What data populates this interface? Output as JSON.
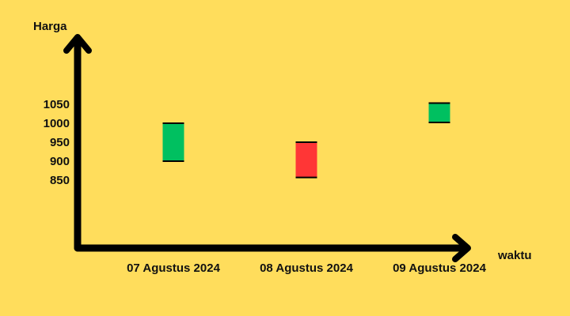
{
  "chart_data": {
    "type": "candlestick",
    "title": "",
    "xlabel": "waktu",
    "ylabel": "Harga",
    "y_ticks": [
      1050,
      1000,
      950,
      900,
      850
    ],
    "categories": [
      "07 Agustus 2024",
      "08 Agustus 2024",
      "09 Agustus 2024"
    ],
    "candles": [
      {
        "date": "07 Agustus 2024",
        "open": 900,
        "close": 1000,
        "direction": "up"
      },
      {
        "date": "08 Agustus 2024",
        "open": 950,
        "close": 857,
        "direction": "down"
      },
      {
        "date": "09 Agustus 2024",
        "open": 1002,
        "close": 1053,
        "direction": "up"
      }
    ],
    "grid": false,
    "legend": "none"
  },
  "colors": {
    "background": "#FFDD5C",
    "up": "#00C060",
    "down": "#FF3636",
    "axis": "#000000"
  }
}
